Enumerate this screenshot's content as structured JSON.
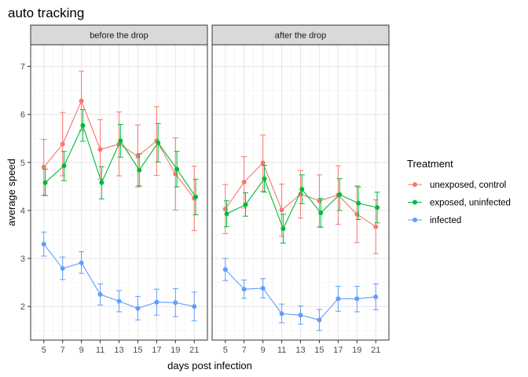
{
  "chart_data": {
    "type": "line",
    "title": "auto tracking",
    "xlabel": "days post infection",
    "ylabel": "average speed",
    "x_ticks": [
      5,
      7,
      9,
      11,
      13,
      15,
      17,
      19,
      21
    ],
    "y_ticks": [
      2,
      3,
      4,
      5,
      6,
      7
    ],
    "xlim": [
      3.6,
      22.4
    ],
    "ylim": [
      1.3,
      7.45
    ],
    "grid": true,
    "legend": {
      "title": "Treatment",
      "position": "right",
      "items": [
        {
          "label": "unexposed, control",
          "color": "#F8766D"
        },
        {
          "label": "exposed, uninfected",
          "color": "#00BA38"
        },
        {
          "label": "infected",
          "color": "#619CFF"
        }
      ]
    },
    "panels": [
      {
        "label": "before the drop",
        "series": [
          {
            "color": "#F8766D",
            "dx": 0,
            "points": [
              {
                "x": 5,
                "y": 4.9,
                "lo": 4.32,
                "hi": 5.48
              },
              {
                "x": 7,
                "y": 5.38,
                "lo": 4.72,
                "hi": 6.04
              },
              {
                "x": 9,
                "y": 6.28,
                "lo": 5.66,
                "hi": 6.9
              },
              {
                "x": 11,
                "y": 5.27,
                "lo": 4.65,
                "hi": 5.89
              },
              {
                "x": 13,
                "y": 5.38,
                "lo": 4.72,
                "hi": 6.05
              },
              {
                "x": 15,
                "y": 5.13,
                "lo": 4.49,
                "hi": 5.78
              },
              {
                "x": 17,
                "y": 5.45,
                "lo": 4.73,
                "hi": 6.16
              },
              {
                "x": 19,
                "y": 4.76,
                "lo": 4.01,
                "hi": 5.51
              },
              {
                "x": 21,
                "y": 4.25,
                "lo": 3.58,
                "hi": 4.92
              }
            ]
          },
          {
            "color": "#00BA38",
            "dx": 0.15,
            "points": [
              {
                "x": 5,
                "y": 4.58,
                "lo": 4.31,
                "hi": 4.86
              },
              {
                "x": 7,
                "y": 4.93,
                "lo": 4.62,
                "hi": 5.23
              },
              {
                "x": 9,
                "y": 5.77,
                "lo": 5.44,
                "hi": 6.1
              },
              {
                "x": 11,
                "y": 4.58,
                "lo": 4.24,
                "hi": 4.91
              },
              {
                "x": 13,
                "y": 5.45,
                "lo": 5.11,
                "hi": 5.79
              },
              {
                "x": 15,
                "y": 4.84,
                "lo": 4.51,
                "hi": 5.18
              },
              {
                "x": 17,
                "y": 5.41,
                "lo": 5.01,
                "hi": 5.81
              },
              {
                "x": 19,
                "y": 4.86,
                "lo": 4.49,
                "hi": 5.23
              },
              {
                "x": 21,
                "y": 4.28,
                "lo": 3.91,
                "hi": 4.65
              }
            ]
          },
          {
            "color": "#619CFF",
            "dx": 0,
            "points": [
              {
                "x": 5,
                "y": 3.3,
                "lo": 3.05,
                "hi": 3.55
              },
              {
                "x": 7,
                "y": 2.79,
                "lo": 2.56,
                "hi": 3.03
              },
              {
                "x": 9,
                "y": 2.91,
                "lo": 2.69,
                "hi": 3.14
              },
              {
                "x": 11,
                "y": 2.25,
                "lo": 2.03,
                "hi": 2.47
              },
              {
                "x": 13,
                "y": 2.11,
                "lo": 1.89,
                "hi": 2.33
              },
              {
                "x": 15,
                "y": 1.96,
                "lo": 1.72,
                "hi": 2.21
              },
              {
                "x": 17,
                "y": 2.09,
                "lo": 1.82,
                "hi": 2.36
              },
              {
                "x": 19,
                "y": 2.08,
                "lo": 1.79,
                "hi": 2.37
              },
              {
                "x": 21,
                "y": 2.0,
                "lo": 1.7,
                "hi": 2.3
              }
            ]
          }
        ]
      },
      {
        "label": "after the drop",
        "series": [
          {
            "color": "#F8766D",
            "dx": 0,
            "points": [
              {
                "x": 5,
                "y": 4.03,
                "lo": 3.52,
                "hi": 4.54
              },
              {
                "x": 7,
                "y": 4.59,
                "lo": 4.05,
                "hi": 5.12
              },
              {
                "x": 9,
                "y": 4.99,
                "lo": 4.4,
                "hi": 5.57
              },
              {
                "x": 11,
                "y": 4.01,
                "lo": 3.46,
                "hi": 4.55
              },
              {
                "x": 13,
                "y": 4.34,
                "lo": 3.84,
                "hi": 4.83
              },
              {
                "x": 15,
                "y": 4.2,
                "lo": 3.66,
                "hi": 4.74
              },
              {
                "x": 17,
                "y": 4.32,
                "lo": 3.71,
                "hi": 4.93
              },
              {
                "x": 19,
                "y": 3.92,
                "lo": 3.33,
                "hi": 4.51
              },
              {
                "x": 21,
                "y": 3.66,
                "lo": 3.1,
                "hi": 4.22
              }
            ]
          },
          {
            "color": "#00BA38",
            "dx": 0.15,
            "points": [
              {
                "x": 5,
                "y": 3.93,
                "lo": 3.66,
                "hi": 4.2
              },
              {
                "x": 7,
                "y": 4.12,
                "lo": 3.88,
                "hi": 4.37
              },
              {
                "x": 9,
                "y": 4.66,
                "lo": 4.38,
                "hi": 4.94
              },
              {
                "x": 11,
                "y": 3.62,
                "lo": 3.32,
                "hi": 3.92
              },
              {
                "x": 13,
                "y": 4.44,
                "lo": 4.14,
                "hi": 4.74
              },
              {
                "x": 15,
                "y": 3.95,
                "lo": 3.65,
                "hi": 4.25
              },
              {
                "x": 17,
                "y": 4.33,
                "lo": 4.0,
                "hi": 4.66
              },
              {
                "x": 19,
                "y": 4.15,
                "lo": 3.81,
                "hi": 4.49
              },
              {
                "x": 21,
                "y": 4.06,
                "lo": 3.74,
                "hi": 4.38
              }
            ]
          },
          {
            "color": "#619CFF",
            "dx": 0,
            "points": [
              {
                "x": 5,
                "y": 2.77,
                "lo": 2.54,
                "hi": 3.0
              },
              {
                "x": 7,
                "y": 2.36,
                "lo": 2.17,
                "hi": 2.55
              },
              {
                "x": 9,
                "y": 2.38,
                "lo": 2.18,
                "hi": 2.58
              },
              {
                "x": 11,
                "y": 1.85,
                "lo": 1.66,
                "hi": 2.05
              },
              {
                "x": 13,
                "y": 1.82,
                "lo": 1.63,
                "hi": 2.01
              },
              {
                "x": 15,
                "y": 1.72,
                "lo": 1.5,
                "hi": 1.94
              },
              {
                "x": 17,
                "y": 2.16,
                "lo": 1.9,
                "hi": 2.42
              },
              {
                "x": 19,
                "y": 2.16,
                "lo": 1.89,
                "hi": 2.42
              },
              {
                "x": 21,
                "y": 2.2,
                "lo": 1.93,
                "hi": 2.47
              }
            ]
          }
        ]
      }
    ]
  }
}
